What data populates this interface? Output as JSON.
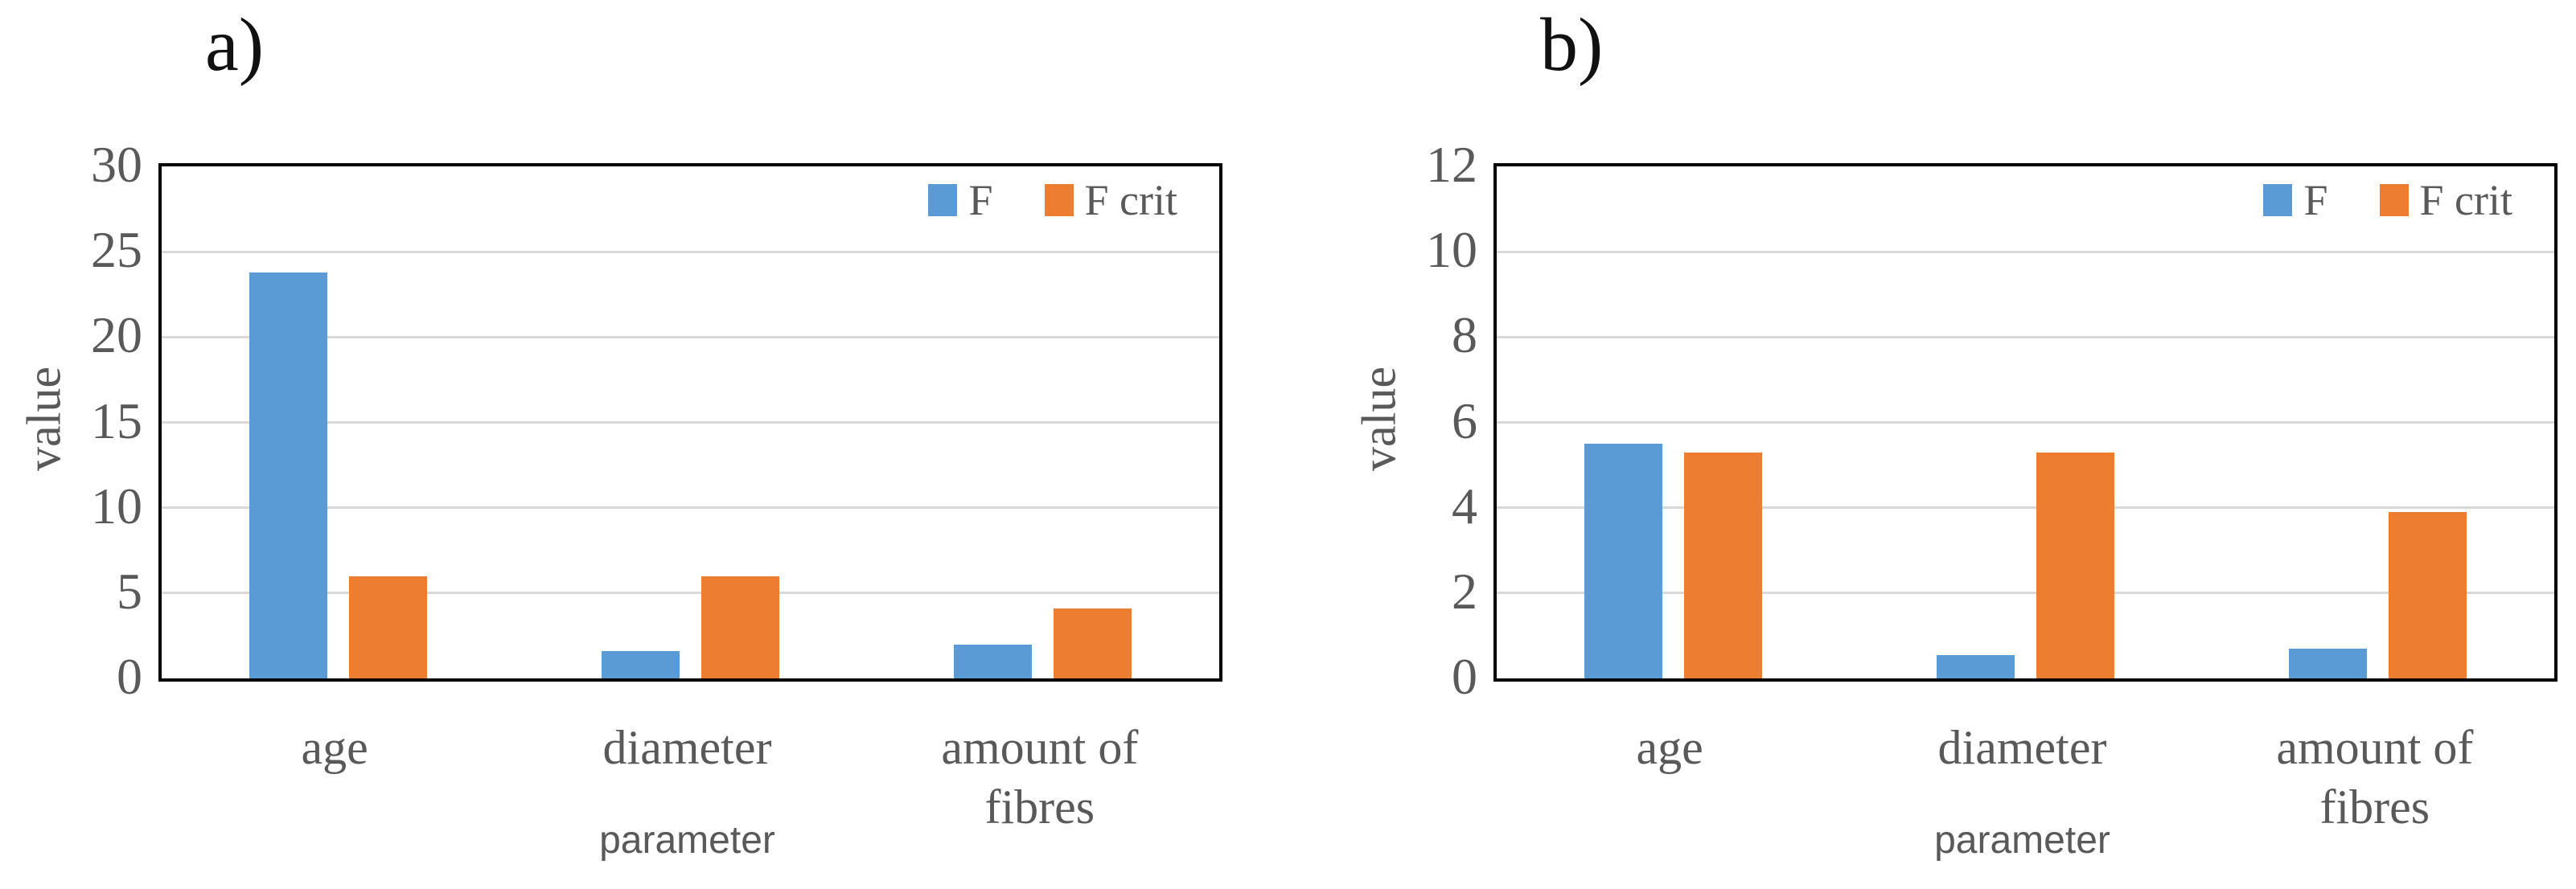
{
  "colors": {
    "f_series": "#5B9BD5",
    "f_crit_series": "#ED7D31",
    "gridline": "#D9D9D9",
    "axis_text": "#595959",
    "plot_border": "#000000",
    "panel_label_text": "#111111"
  },
  "chart_data": [
    {
      "type": "bar",
      "panel_label": "a)",
      "title": "",
      "xlabel": "parameter",
      "ylabel": "value",
      "categories": [
        "age",
        "diameter",
        "amount of fibres"
      ],
      "category_lines": [
        [
          "age"
        ],
        [
          "diameter"
        ],
        [
          "amount of",
          "fibres"
        ]
      ],
      "series": [
        {
          "name": "F",
          "color": "#5B9BD5",
          "values": [
            23.8,
            1.6,
            2.0
          ]
        },
        {
          "name": "F crit",
          "color": "#ED7D31",
          "values": [
            6.0,
            6.0,
            4.1
          ]
        }
      ],
      "ylim": [
        0,
        30
      ],
      "ytick_step": 5,
      "yticks": [
        0,
        5,
        10,
        15,
        20,
        25,
        30
      ],
      "grid": true,
      "legend_position": "top-right-inside"
    },
    {
      "type": "bar",
      "panel_label": "b)",
      "title": "",
      "xlabel": "parameter",
      "ylabel": "value",
      "categories": [
        "age",
        "diameter",
        "amount of fibres"
      ],
      "category_lines": [
        [
          "age"
        ],
        [
          "diameter"
        ],
        [
          "amount of",
          "fibres"
        ]
      ],
      "series": [
        {
          "name": "F",
          "color": "#5B9BD5",
          "values": [
            5.5,
            0.55,
            0.7
          ]
        },
        {
          "name": "F crit",
          "color": "#ED7D31",
          "values": [
            5.3,
            5.3,
            3.9
          ]
        }
      ],
      "ylim": [
        0,
        12
      ],
      "ytick_step": 2,
      "yticks": [
        0,
        2,
        4,
        6,
        8,
        10,
        12
      ],
      "grid": true,
      "legend_position": "top-right-inside"
    }
  ]
}
